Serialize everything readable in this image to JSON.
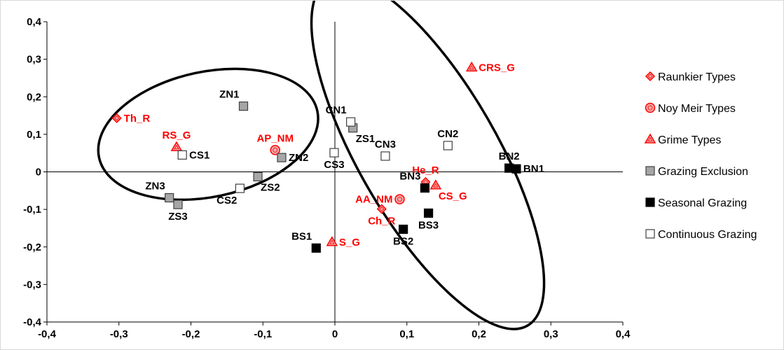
{
  "chart_data": {
    "type": "scatter",
    "title": "",
    "xlabel": "",
    "ylabel": "",
    "xlim": [
      -0.4,
      0.4
    ],
    "ylim": [
      -0.4,
      0.4
    ],
    "x_ticks": [
      {
        "value": -0.4,
        "label": "-0,4"
      },
      {
        "value": -0.3,
        "label": "-0,3"
      },
      {
        "value": -0.2,
        "label": "-0,2"
      },
      {
        "value": -0.1,
        "label": "-0,1"
      },
      {
        "value": 0.0,
        "label": "0"
      },
      {
        "value": 0.1,
        "label": "0,1"
      },
      {
        "value": 0.2,
        "label": "0,2"
      },
      {
        "value": 0.3,
        "label": "0,3"
      },
      {
        "value": 0.4,
        "label": "0,4"
      }
    ],
    "y_ticks": [
      {
        "value": 0.4,
        "label": "0,4"
      },
      {
        "value": 0.3,
        "label": "0,3"
      },
      {
        "value": 0.2,
        "label": "0,2"
      },
      {
        "value": 0.1,
        "label": "0,1"
      },
      {
        "value": 0.0,
        "label": "0"
      },
      {
        "value": -0.1,
        "label": "-0,1"
      },
      {
        "value": -0.2,
        "label": "-0,2"
      },
      {
        "value": -0.3,
        "label": "-0,3"
      },
      {
        "value": -0.4,
        "label": "-0,4"
      }
    ],
    "grid": false,
    "legend_position": "right",
    "colors": {
      "red": "#ff0000",
      "black": "#000000",
      "gray": "#a6a6a6",
      "white": "#ffffff",
      "axis": "#000000"
    },
    "series": [
      {
        "name": "Raunkier Types",
        "marker": "diamond",
        "points": [
          {
            "label": "Th_R",
            "x": -0.303,
            "y": 0.143,
            "label_pos": "right"
          },
          {
            "label": "He_R",
            "x": 0.126,
            "y": -0.027,
            "label_pos": "above"
          },
          {
            "label": "Ch_R",
            "x": 0.065,
            "y": -0.099,
            "label_pos": "below"
          }
        ]
      },
      {
        "name": "Noy Meir Types",
        "marker": "circle",
        "points": [
          {
            "label": "AP_NM",
            "x": -0.083,
            "y": 0.058,
            "label_pos": "above"
          },
          {
            "label": "AA_NM",
            "x": 0.09,
            "y": -0.073,
            "label_pos": "left"
          }
        ]
      },
      {
        "name": "Grime Types",
        "marker": "triangle",
        "points": [
          {
            "label": "RS_G",
            "x": -0.22,
            "y": 0.066,
            "label_pos": "above"
          },
          {
            "label": "CRS_G",
            "x": 0.19,
            "y": 0.278,
            "label_pos": "right"
          },
          {
            "label": "CS_G",
            "x": 0.14,
            "y": -0.036,
            "label_pos": "below-right"
          },
          {
            "label": "S_G",
            "x": -0.004,
            "y": -0.187,
            "label_pos": "right"
          }
        ]
      },
      {
        "name": "Grazing Exclusion",
        "marker": "square-gray",
        "points": [
          {
            "label": "ZN1",
            "x": -0.127,
            "y": 0.175,
            "label_pos": "above-left"
          },
          {
            "label": "ZN2",
            "x": -0.074,
            "y": 0.038,
            "label_pos": "right"
          },
          {
            "label": "ZS1",
            "x": 0.025,
            "y": 0.117,
            "label_pos": "below-right"
          },
          {
            "label": "ZS2",
            "x": -0.107,
            "y": -0.013,
            "label_pos": "below-right"
          },
          {
            "label": "ZN3",
            "x": -0.23,
            "y": -0.069,
            "label_pos": "above-left"
          },
          {
            "label": "ZS3",
            "x": -0.218,
            "y": -0.087,
            "label_pos": "below"
          }
        ]
      },
      {
        "name": "Seasonal Grazing",
        "marker": "square-black",
        "points": [
          {
            "label": "BN1",
            "x": 0.252,
            "y": 0.008,
            "label_pos": "right"
          },
          {
            "label": "BN2",
            "x": 0.242,
            "y": 0.01,
            "label_pos": "above"
          },
          {
            "label": "BN3",
            "x": 0.125,
            "y": -0.043,
            "label_pos": "above-left"
          },
          {
            "label": "BS1",
            "x": -0.026,
            "y": -0.203,
            "label_pos": "above-left"
          },
          {
            "label": "BS2",
            "x": 0.095,
            "y": -0.153,
            "label_pos": "below"
          },
          {
            "label": "BS3",
            "x": 0.13,
            "y": -0.11,
            "label_pos": "below"
          }
        ]
      },
      {
        "name": "Continuous Grazing",
        "marker": "square-white",
        "points": [
          {
            "label": "CN1",
            "x": 0.022,
            "y": 0.133,
            "label_pos": "above-left"
          },
          {
            "label": "CN2",
            "x": 0.157,
            "y": 0.07,
            "label_pos": "above"
          },
          {
            "label": "CN3",
            "x": 0.07,
            "y": 0.042,
            "label_pos": "above"
          },
          {
            "label": "CS1",
            "x": -0.212,
            "y": 0.045,
            "label_pos": "right"
          },
          {
            "label": "CS2",
            "x": -0.132,
            "y": -0.044,
            "label_pos": "below-left"
          },
          {
            "label": "CS3",
            "x": -0.001,
            "y": 0.051,
            "label_pos": "below"
          }
        ]
      }
    ],
    "ellipses": [
      {
        "name": "left-group",
        "cx": -0.176,
        "cy": 0.1,
        "rx": 0.155,
        "ry": 0.087,
        "rotation": 12
      },
      {
        "name": "right-group",
        "cx": 0.129,
        "cy": 0.05,
        "rx": 0.277,
        "ry": 0.096,
        "rotation": -60
      }
    ]
  }
}
